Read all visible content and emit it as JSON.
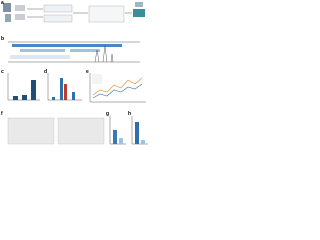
{
  "panels": {
    "labels": [
      "a",
      "b",
      "c",
      "d",
      "e",
      "f",
      "g",
      "h"
    ]
  }
}
